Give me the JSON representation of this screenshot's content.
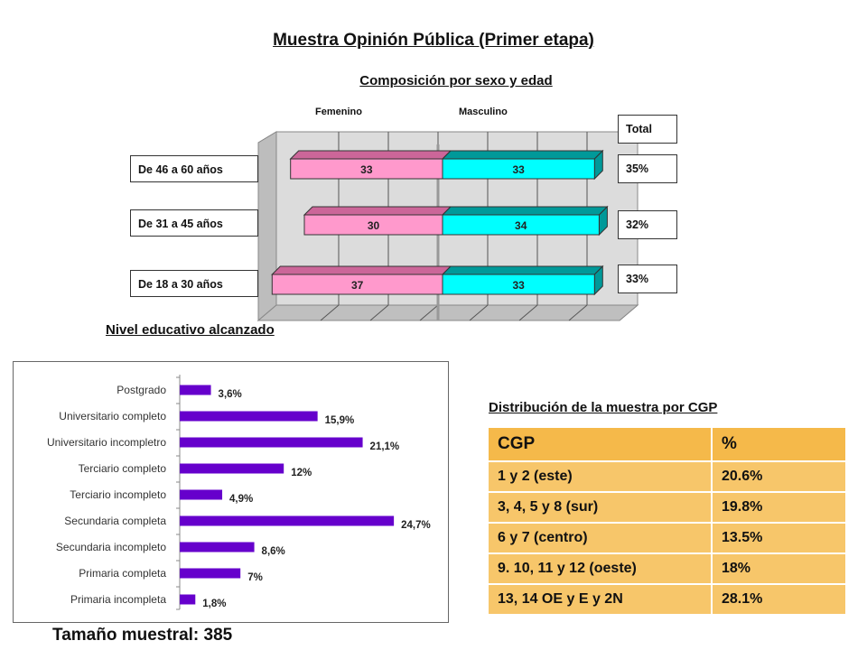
{
  "title": "Muestra Opinión Pública (Primer etapa)",
  "sex_age": {
    "subtitle": "Composición por sexo y edad",
    "legend_fem": "Femenino",
    "legend_masc": "Masculino",
    "total_header": "Total",
    "colors": {
      "femenino": "#ff99cc",
      "femenino_top": "#cc6699",
      "masculino": "#00ffff",
      "masculino_side": "#009999"
    }
  },
  "education": {
    "title": "Nivel educativo alcanzado",
    "bar_color": "#6600cc"
  },
  "cgp": {
    "title": "Distribución  de la muestra por CGP",
    "header": [
      "CGP",
      "%"
    ],
    "rows": [
      [
        "1 y 2 (este)",
        "20.6%"
      ],
      [
        "3, 4, 5 y 8 (sur)",
        "19.8%"
      ],
      [
        "6 y 7 (centro)",
        "13.5%"
      ],
      [
        "9. 10, 11 y 12 (oeste)",
        "18%"
      ],
      [
        "13, 14 OE y E y 2N",
        "28.1%"
      ]
    ]
  },
  "footer": "Tamaño muestral: 385",
  "chart_data": [
    {
      "type": "bar",
      "title": "Composición por sexo y edad",
      "orientation": "horizontal",
      "stacked": true,
      "categories": [
        "De 46 a 60 años",
        "De 31 a 45 años",
        "De 18 a 30 años"
      ],
      "series": [
        {
          "name": "Femenino",
          "values": [
            33,
            30,
            37
          ]
        },
        {
          "name": "Masculino",
          "values": [
            33,
            34,
            33
          ]
        }
      ],
      "total": [
        "35%",
        "32%",
        "33%"
      ],
      "legend": "top",
      "grid": true
    },
    {
      "type": "bar",
      "title": "Nivel educativo alcanzado",
      "orientation": "horizontal",
      "categories": [
        "Postgrado",
        "Universitario completo",
        "Universitario incompletro",
        "Terciario completo",
        "Terciario incompleto",
        "Secundaria completa",
        "Secundaria incompleto",
        "Primaria completa",
        "Primaria incompleta"
      ],
      "values": [
        3.6,
        15.9,
        21.1,
        12,
        4.9,
        24.7,
        8.6,
        7,
        1.8
      ],
      "labels": [
        "3,6%",
        "15,9%",
        "21,1%",
        "12%",
        "4,9%",
        "24,7%",
        "8,6%",
        "7%",
        "1,8%"
      ],
      "grid": false
    }
  ]
}
